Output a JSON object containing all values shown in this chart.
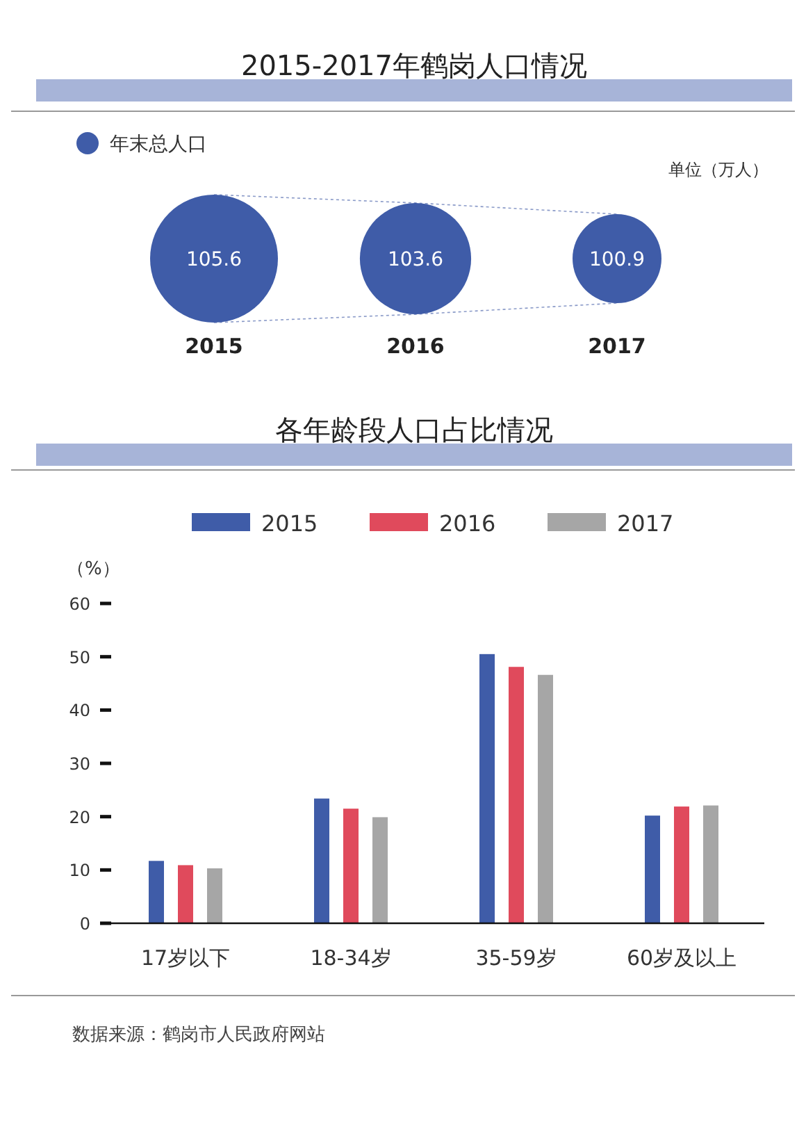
{
  "chart_data": [
    {
      "type": "other",
      "title": "2015-2017年鹤岗人口情况",
      "categories": [
        "2015",
        "2016",
        "2017"
      ],
      "series": [
        {
          "name": "年末总人口",
          "color": "#3f5ca8",
          "values": [
            105.6,
            103.6,
            100.9
          ]
        }
      ],
      "data_labels": true,
      "legend": "top left",
      "annotations": [
        "单位（万人）"
      ]
    },
    {
      "type": "bar",
      "title": "各年龄段人口占比情况",
      "ylabel": "（%）",
      "categories": [
        "17岁以下",
        "18-34岁",
        "35-59岁",
        "60岁及以上"
      ],
      "series": [
        {
          "name": "2015",
          "color": "#3f5ca8",
          "values": [
            11.7,
            23.4,
            50.5,
            20.2
          ]
        },
        {
          "name": "2016",
          "color": "#e04a5c",
          "values": [
            10.9,
            21.5,
            48.1,
            21.9
          ]
        },
        {
          "name": "2017",
          "color": "#a6a6a6",
          "values": [
            10.3,
            19.9,
            46.6,
            22.1
          ]
        }
      ],
      "ylim": [
        0,
        60
      ],
      "yticks": [
        0,
        10,
        20,
        30,
        40,
        50,
        60
      ],
      "legend": "top",
      "grid": false,
      "annotations": [
        "数据来源：鹤岗市人民政府网站"
      ]
    }
  ]
}
